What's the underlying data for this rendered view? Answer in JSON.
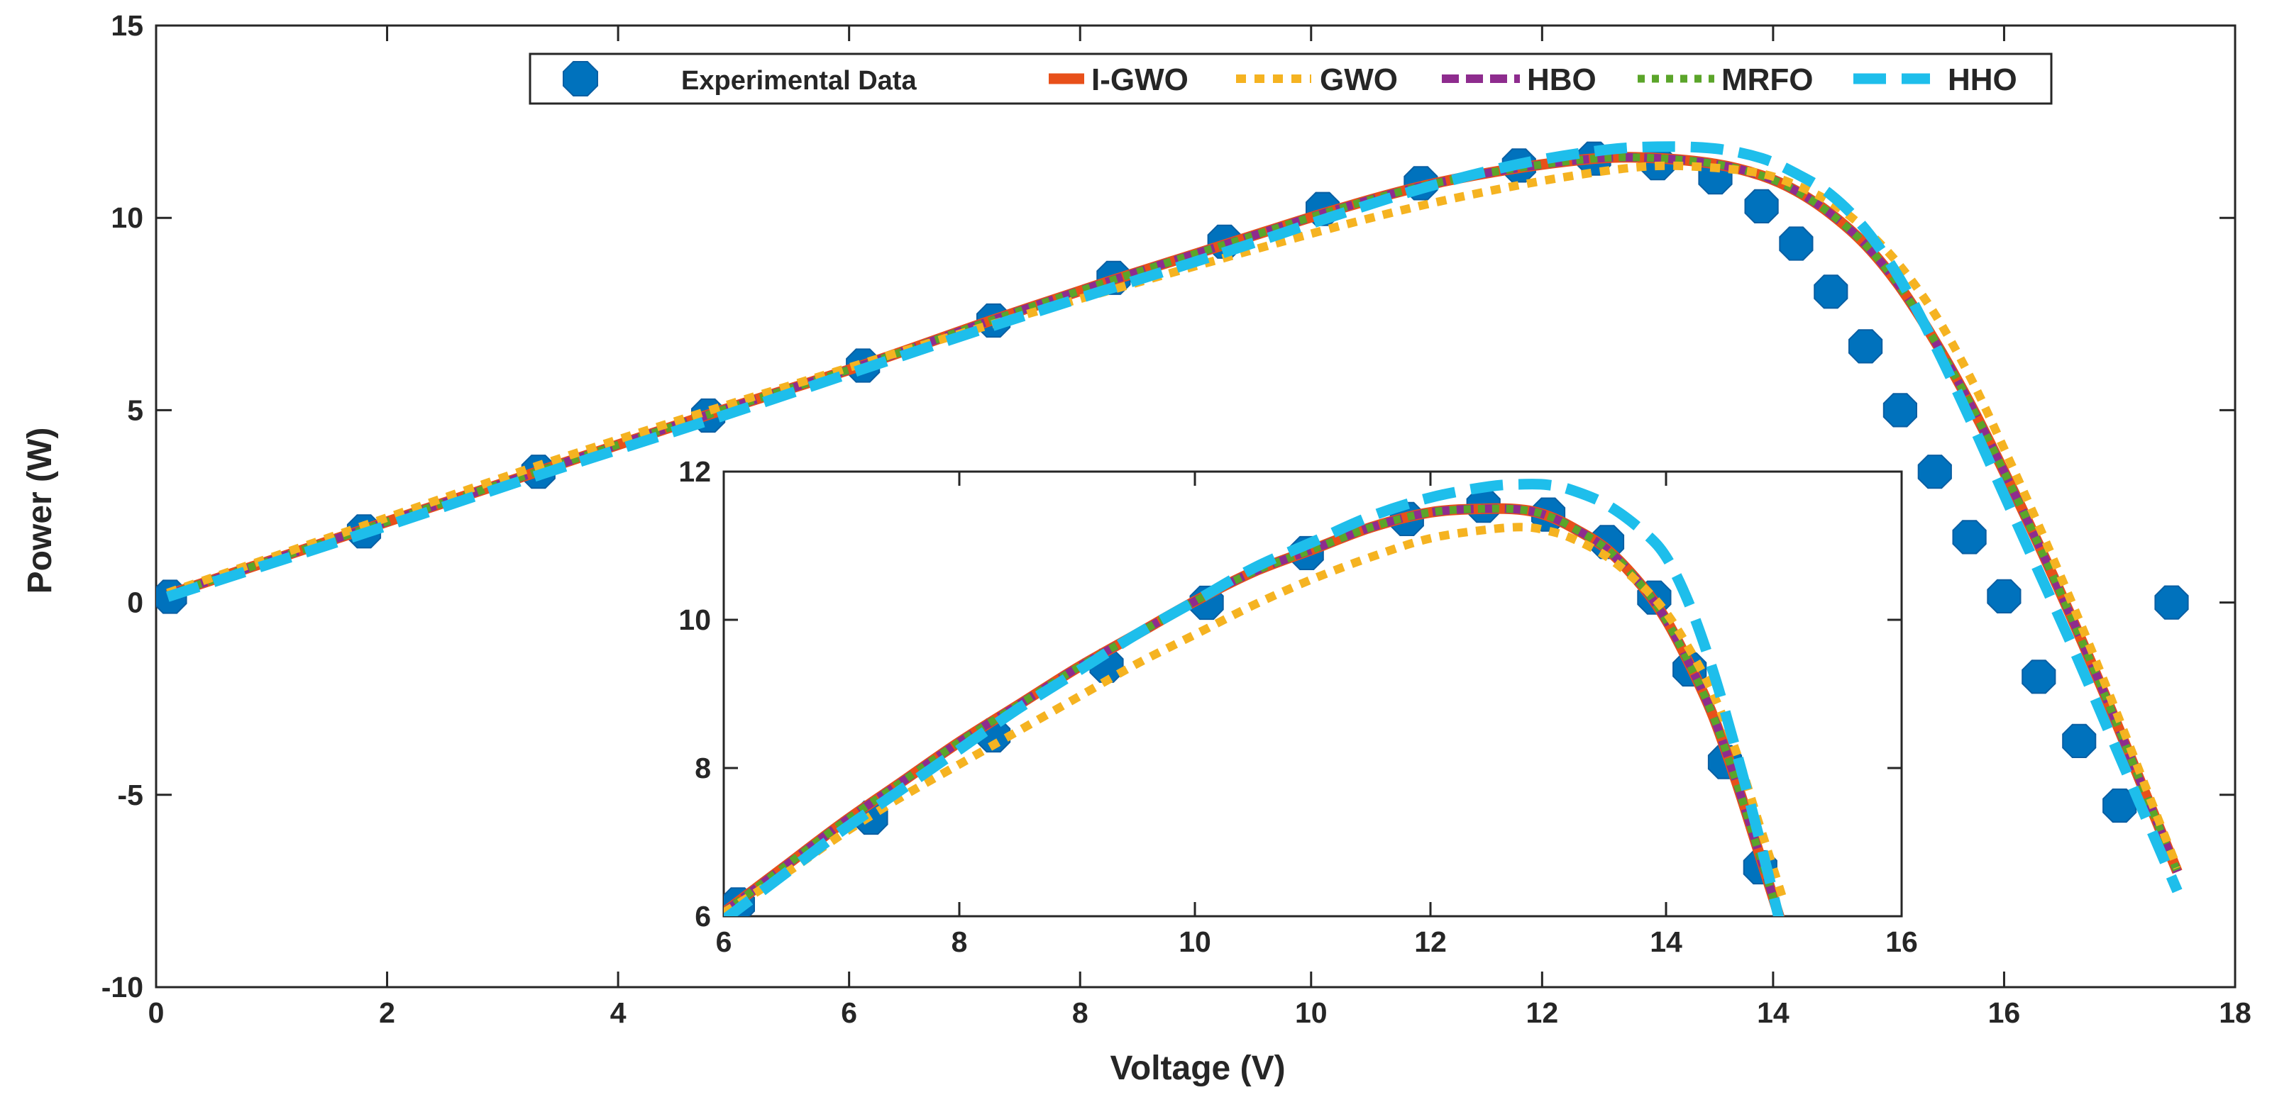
{
  "chart_data": {
    "type": "line",
    "xlabel": "Voltage (V)",
    "ylabel": "Power (W)",
    "xlim": [
      0,
      18
    ],
    "ylim": [
      -10,
      15
    ],
    "xticks": [
      "0",
      "2",
      "4",
      "6",
      "8",
      "10",
      "12",
      "14",
      "16",
      "18"
    ],
    "yticks": [
      "-10",
      "-5",
      "0",
      "5",
      "10",
      "15"
    ],
    "legend_position": "top-center",
    "legend": {
      "experimental": "Experimental Data",
      "igwo": "I-GWO",
      "gwo": "GWO",
      "hbo": "HBO",
      "mrfo": "MRFO",
      "hho": "HHO"
    },
    "colors": {
      "experimental": "#0072BD",
      "igwo": "#E8501A",
      "gwo": "#F5B321",
      "hbo": "#8E2C8E",
      "mrfo": "#5BA52A",
      "hho": "#1EBEEB"
    },
    "experimental": {
      "x": [
        0.12,
        1.8,
        3.31,
        4.78,
        6.12,
        7.25,
        8.29,
        9.25,
        10.1,
        10.95,
        11.8,
        12.45,
        13.0,
        13.5,
        13.9,
        14.2,
        14.5,
        14.8,
        15.1,
        15.4,
        15.7,
        16.0,
        16.3,
        16.65,
        17.0,
        17.45
      ],
      "y": [
        0.15,
        1.85,
        3.4,
        4.86,
        6.16,
        7.33,
        8.44,
        9.38,
        10.23,
        10.9,
        11.36,
        11.54,
        11.42,
        11.05,
        10.3,
        9.33,
        8.08,
        6.66,
        5.0,
        3.4,
        1.7,
        0.16,
        -1.93,
        -3.6,
        -5.28,
        0
      ]
    },
    "models": {
      "main": {
        "x": [
          0.1,
          1.8,
          3.3,
          4.8,
          6.1,
          7.2,
          8.3,
          9.3,
          10.2,
          11.0,
          11.8,
          12.5,
          13.0,
          13.5,
          13.9,
          14.2,
          14.5,
          14.8,
          15.1,
          15.4,
          15.7,
          16.0,
          16.3,
          16.6,
          16.9,
          17.2,
          17.5
        ],
        "igwo": [
          0.2,
          1.9,
          3.4,
          4.9,
          6.15,
          7.3,
          8.4,
          9.35,
          10.2,
          10.85,
          11.3,
          11.55,
          11.55,
          11.4,
          11.1,
          10.7,
          10.1,
          9.3,
          8.2,
          6.8,
          5.2,
          3.4,
          1.5,
          -0.5,
          -2.6,
          -4.8,
          -7.0
        ],
        "gwo": [
          0.25,
          2.0,
          3.55,
          5.0,
          6.2,
          7.2,
          8.15,
          9.0,
          9.75,
          10.35,
          10.85,
          11.2,
          11.35,
          11.3,
          11.15,
          10.85,
          10.4,
          9.7,
          8.75,
          7.5,
          5.9,
          4.0,
          2.0,
          -0.1,
          -2.3,
          -4.6,
          -6.9
        ],
        "hbo": [
          0.2,
          1.9,
          3.4,
          4.9,
          6.15,
          7.3,
          8.4,
          9.35,
          10.2,
          10.85,
          11.3,
          11.55,
          11.55,
          11.4,
          11.1,
          10.7,
          10.1,
          9.3,
          8.2,
          6.8,
          5.2,
          3.4,
          1.5,
          -0.5,
          -2.6,
          -4.8,
          -7.0
        ],
        "mrfo": [
          0.2,
          1.9,
          3.4,
          4.9,
          6.15,
          7.3,
          8.4,
          9.35,
          10.2,
          10.85,
          11.3,
          11.55,
          11.55,
          11.4,
          11.1,
          10.7,
          10.1,
          9.3,
          8.2,
          6.8,
          5.2,
          3.4,
          1.5,
          -0.5,
          -2.6,
          -4.8,
          -7.0
        ],
        "hho": [
          0.15,
          1.8,
          3.3,
          4.75,
          6.05,
          7.15,
          8.2,
          9.15,
          10.05,
          10.8,
          11.4,
          11.75,
          11.85,
          11.8,
          11.55,
          11.15,
          10.6,
          9.7,
          8.4,
          6.7,
          4.8,
          2.8,
          0.8,
          -1.2,
          -3.3,
          -5.4,
          -7.5
        ]
      },
      "inset": {
        "x": [
          6.0,
          6.5,
          7.0,
          7.5,
          8.0,
          8.5,
          9.0,
          9.5,
          10.0,
          10.5,
          11.0,
          11.5,
          12.0,
          12.5,
          12.8,
          13.0,
          13.2,
          13.5,
          13.8,
          14.0,
          14.2,
          14.4,
          14.6,
          14.8,
          15.0
        ],
        "igwo": [
          6.05,
          6.65,
          7.25,
          7.8,
          8.35,
          8.85,
          9.35,
          9.8,
          10.25,
          10.65,
          10.95,
          11.25,
          11.45,
          11.5,
          11.48,
          11.4,
          11.25,
          10.95,
          10.45,
          10.0,
          9.4,
          8.7,
          7.8,
          6.8,
          5.8
        ],
        "gwo": [
          6.05,
          6.55,
          7.1,
          7.6,
          8.05,
          8.5,
          8.95,
          9.4,
          9.8,
          10.2,
          10.55,
          10.85,
          11.1,
          11.22,
          11.25,
          11.2,
          11.1,
          10.85,
          10.45,
          10.1,
          9.6,
          9.0,
          8.2,
          7.2,
          6.2
        ],
        "hbo": [
          6.05,
          6.65,
          7.25,
          7.8,
          8.35,
          8.85,
          9.35,
          9.8,
          10.25,
          10.65,
          10.95,
          11.25,
          11.45,
          11.5,
          11.48,
          11.4,
          11.25,
          10.95,
          10.45,
          10.0,
          9.4,
          8.7,
          7.8,
          6.8,
          5.8
        ],
        "mrfo": [
          6.05,
          6.65,
          7.25,
          7.8,
          8.35,
          8.85,
          9.35,
          9.8,
          10.25,
          10.65,
          10.95,
          11.25,
          11.45,
          11.5,
          11.48,
          11.4,
          11.25,
          10.95,
          10.45,
          10.0,
          9.4,
          8.7,
          7.8,
          6.8,
          5.8
        ],
        "hho": [
          5.95,
          6.55,
          7.15,
          7.7,
          8.25,
          8.8,
          9.3,
          9.8,
          10.25,
          10.7,
          11.05,
          11.4,
          11.65,
          11.8,
          11.83,
          11.82,
          11.75,
          11.55,
          11.2,
          10.85,
          10.2,
          9.3,
          8.2,
          7.0,
          5.7
        ]
      }
    },
    "inset": {
      "xlim": [
        6,
        16
      ],
      "ylim": [
        6,
        12
      ],
      "xticks": [
        "6",
        "8",
        "10",
        "12",
        "14",
        "16"
      ],
      "yticks": [
        "6",
        "8",
        "10",
        "12"
      ]
    }
  }
}
